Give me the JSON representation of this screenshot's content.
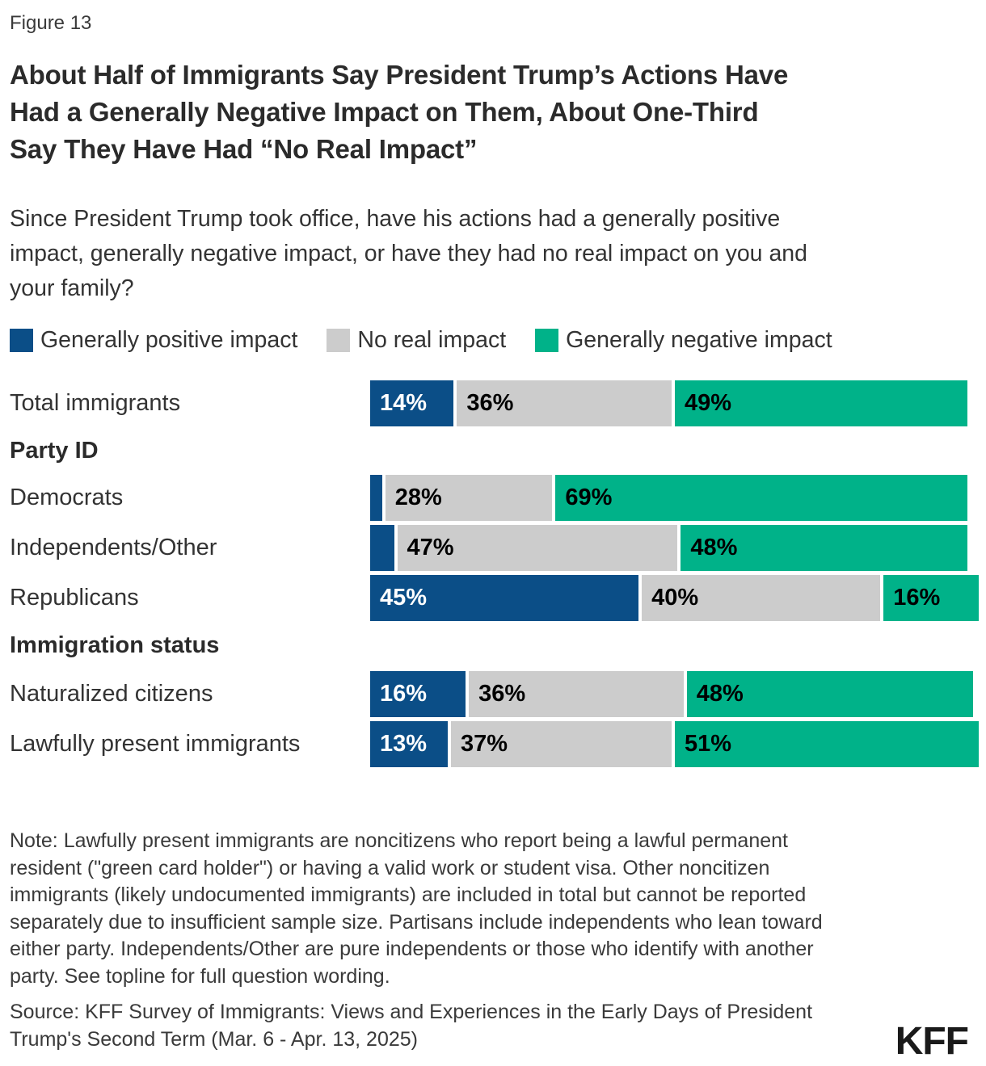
{
  "figure_label": "Figure 13",
  "header": {
    "title_lines": [
      "About Half of Immigrants Say President Trump’s Actions Have",
      "Had a Generally Negative Impact on Them, About One-Third",
      "Say They Have Had “No Real Impact”"
    ],
    "subtitle_lines": [
      "Since President Trump took office, have his actions had a generally positive",
      "impact, generally negative impact, or have they had no real impact on you and",
      "your family?"
    ]
  },
  "colors": {
    "positive": "#0b4e87",
    "none": "#cccccc",
    "negative": "#00b289",
    "title_text": "#2b2b2b",
    "body_text": "#333333"
  },
  "legend": [
    {
      "label": "Generally positive impact",
      "color_key": "positive"
    },
    {
      "label": "No real impact",
      "color_key": "none"
    },
    {
      "label": "Generally negative impact",
      "color_key": "negative"
    }
  ],
  "chart_data": {
    "type": "bar",
    "orientation": "horizontal_stacked",
    "unit": "percent",
    "xlim": [
      0,
      100
    ],
    "grid": false,
    "legend_position": "top",
    "series_names": [
      "Generally positive impact",
      "No real impact",
      "Generally negative impact"
    ],
    "series_colors": [
      "#0b4e87",
      "#cccccc",
      "#00b289"
    ],
    "rows": [
      {
        "kind": "bar",
        "label": "Total immigrants",
        "values": [
          14,
          36,
          49
        ],
        "value_labels": [
          "14%",
          "36%",
          "49%"
        ]
      },
      {
        "kind": "section",
        "label": "Party ID"
      },
      {
        "kind": "bar",
        "label": "Democrats",
        "values": [
          2,
          28,
          69
        ],
        "value_labels": [
          "",
          "28%",
          "69%"
        ]
      },
      {
        "kind": "bar",
        "label": "Independents/Other",
        "values": [
          4,
          47,
          48
        ],
        "value_labels": [
          "",
          "47%",
          "48%"
        ]
      },
      {
        "kind": "bar",
        "label": "Republicans",
        "values": [
          45,
          40,
          16
        ],
        "value_labels": [
          "45%",
          "40%",
          "16%"
        ]
      },
      {
        "kind": "section",
        "label": "Immigration status"
      },
      {
        "kind": "bar",
        "label": "Naturalized citizens",
        "values": [
          16,
          36,
          48
        ],
        "value_labels": [
          "16%",
          "36%",
          "48%"
        ]
      },
      {
        "kind": "bar",
        "label": "Lawfully present immigrants",
        "values": [
          13,
          37,
          51
        ],
        "value_labels": [
          "13%",
          "37%",
          "51%"
        ]
      }
    ]
  },
  "note_lines": [
    "Note: Lawfully present immigrants are noncitizens who report being a lawful permanent",
    "resident (\"green card holder\") or having a valid work or student visa. Other noncitizen",
    "immigrants (likely undocumented immigrants) are included in total but cannot be reported",
    "separately due to insufficient sample size. Partisans include independents who lean toward",
    "either party. Independents/Other are pure independents or those who identify with another",
    "party. See topline for full question wording."
  ],
  "source_lines": [
    "Source: KFF Survey of Immigrants: Views and Experiences in the Early Days of President",
    "Trump's Second Term (Mar. 6 - Apr. 13, 2025)"
  ],
  "logo_text": "KFF"
}
